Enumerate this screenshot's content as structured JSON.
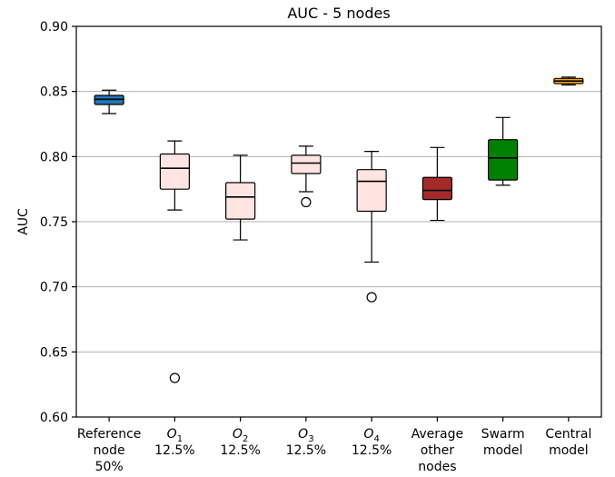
{
  "chart_data": {
    "type": "box",
    "title": "AUC - 5 nodes",
    "ylabel": "AUC",
    "xlabel": "",
    "ylim": [
      0.6,
      0.9
    ],
    "yticks": [
      0.6,
      0.65,
      0.7,
      0.75,
      0.8,
      0.85,
      0.9
    ],
    "ytick_labels": [
      "0.60",
      "0.65",
      "0.70",
      "0.75",
      "0.80",
      "0.85",
      "0.90"
    ],
    "grid": "horizontal",
    "categories": [
      {
        "name": "Reference",
        "sub": "node|50%",
        "italic": false
      },
      {
        "name": "O",
        "subscript": "1",
        "sub": "12.5%",
        "italic": true
      },
      {
        "name": "O",
        "subscript": "2",
        "sub": "12.5%",
        "italic": true
      },
      {
        "name": "O",
        "subscript": "3",
        "sub": "12.5%",
        "italic": true
      },
      {
        "name": "O",
        "subscript": "4",
        "sub": "12.5%",
        "italic": true
      },
      {
        "name": "Average",
        "sub": "other|nodes",
        "italic": false
      },
      {
        "name": "Swarm",
        "sub": "model",
        "italic": false
      },
      {
        "name": "Central",
        "sub": "model",
        "italic": false
      }
    ],
    "boxes": [
      {
        "whislo": 0.833,
        "q1": 0.84,
        "med": 0.844,
        "q3": 0.847,
        "whishi": 0.851,
        "fliers": [],
        "color": "#1f77b4"
      },
      {
        "whislo": 0.759,
        "q1": 0.775,
        "med": 0.791,
        "q3": 0.802,
        "whishi": 0.812,
        "fliers": [
          0.63
        ],
        "color": "#ffe4e1"
      },
      {
        "whislo": 0.736,
        "q1": 0.752,
        "med": 0.769,
        "q3": 0.78,
        "whishi": 0.801,
        "fliers": [],
        "color": "#ffe4e1"
      },
      {
        "whislo": 0.773,
        "q1": 0.787,
        "med": 0.795,
        "q3": 0.801,
        "whishi": 0.808,
        "fliers": [
          0.765
        ],
        "color": "#ffe4e1"
      },
      {
        "whislo": 0.719,
        "q1": 0.758,
        "med": 0.781,
        "q3": 0.79,
        "whishi": 0.804,
        "fliers": [
          0.692
        ],
        "color": "#ffe4e1"
      },
      {
        "whislo": 0.751,
        "q1": 0.767,
        "med": 0.774,
        "q3": 0.784,
        "whishi": 0.807,
        "fliers": [],
        "color": "#a52a2a"
      },
      {
        "whislo": 0.778,
        "q1": 0.782,
        "med": 0.799,
        "q3": 0.813,
        "whishi": 0.83,
        "fliers": [],
        "color": "#008000"
      },
      {
        "whislo": 0.855,
        "q1": 0.856,
        "med": 0.858,
        "q3": 0.86,
        "whishi": 0.861,
        "fliers": [],
        "color": "#ffa500"
      }
    ]
  }
}
